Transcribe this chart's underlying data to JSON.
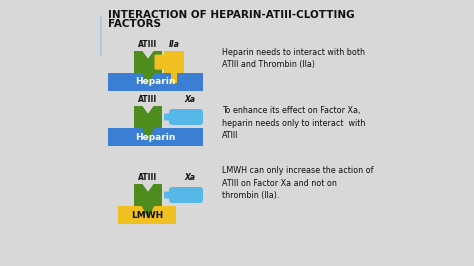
{
  "title_line1": "INTERACTION OF HEPARIN-ATIII-CLOTTING",
  "title_line2": "FACTORS",
  "bg_color": "#d8d8d8",
  "green_color": "#4e8c1e",
  "blue_color": "#3a7fd4",
  "yellow_color": "#f0c020",
  "light_blue_color": "#55b8e8",
  "text_color": "#111111",
  "d1_atiii": "ATIII",
  "d1_iia": "IIa",
  "d1_heparin": "Heparin",
  "d1_text": "Heparin needs to interact with both\nATIII and Thrombin (IIa)",
  "d2_atiii": "ATIII",
  "d2_xa": "Xa",
  "d2_heparin": "Heparin",
  "d2_text": "To enhance its effect on Factor Xa,\nheparin needs only to interact  with\nATIII",
  "d3_atiii": "ATIII",
  "d3_xa": "Xa",
  "d3_lmwh": "LMWH",
  "d3_text": "LMWH can only increase the action of\nATIII on Factor Xa and not on\nthrombin (IIa)."
}
